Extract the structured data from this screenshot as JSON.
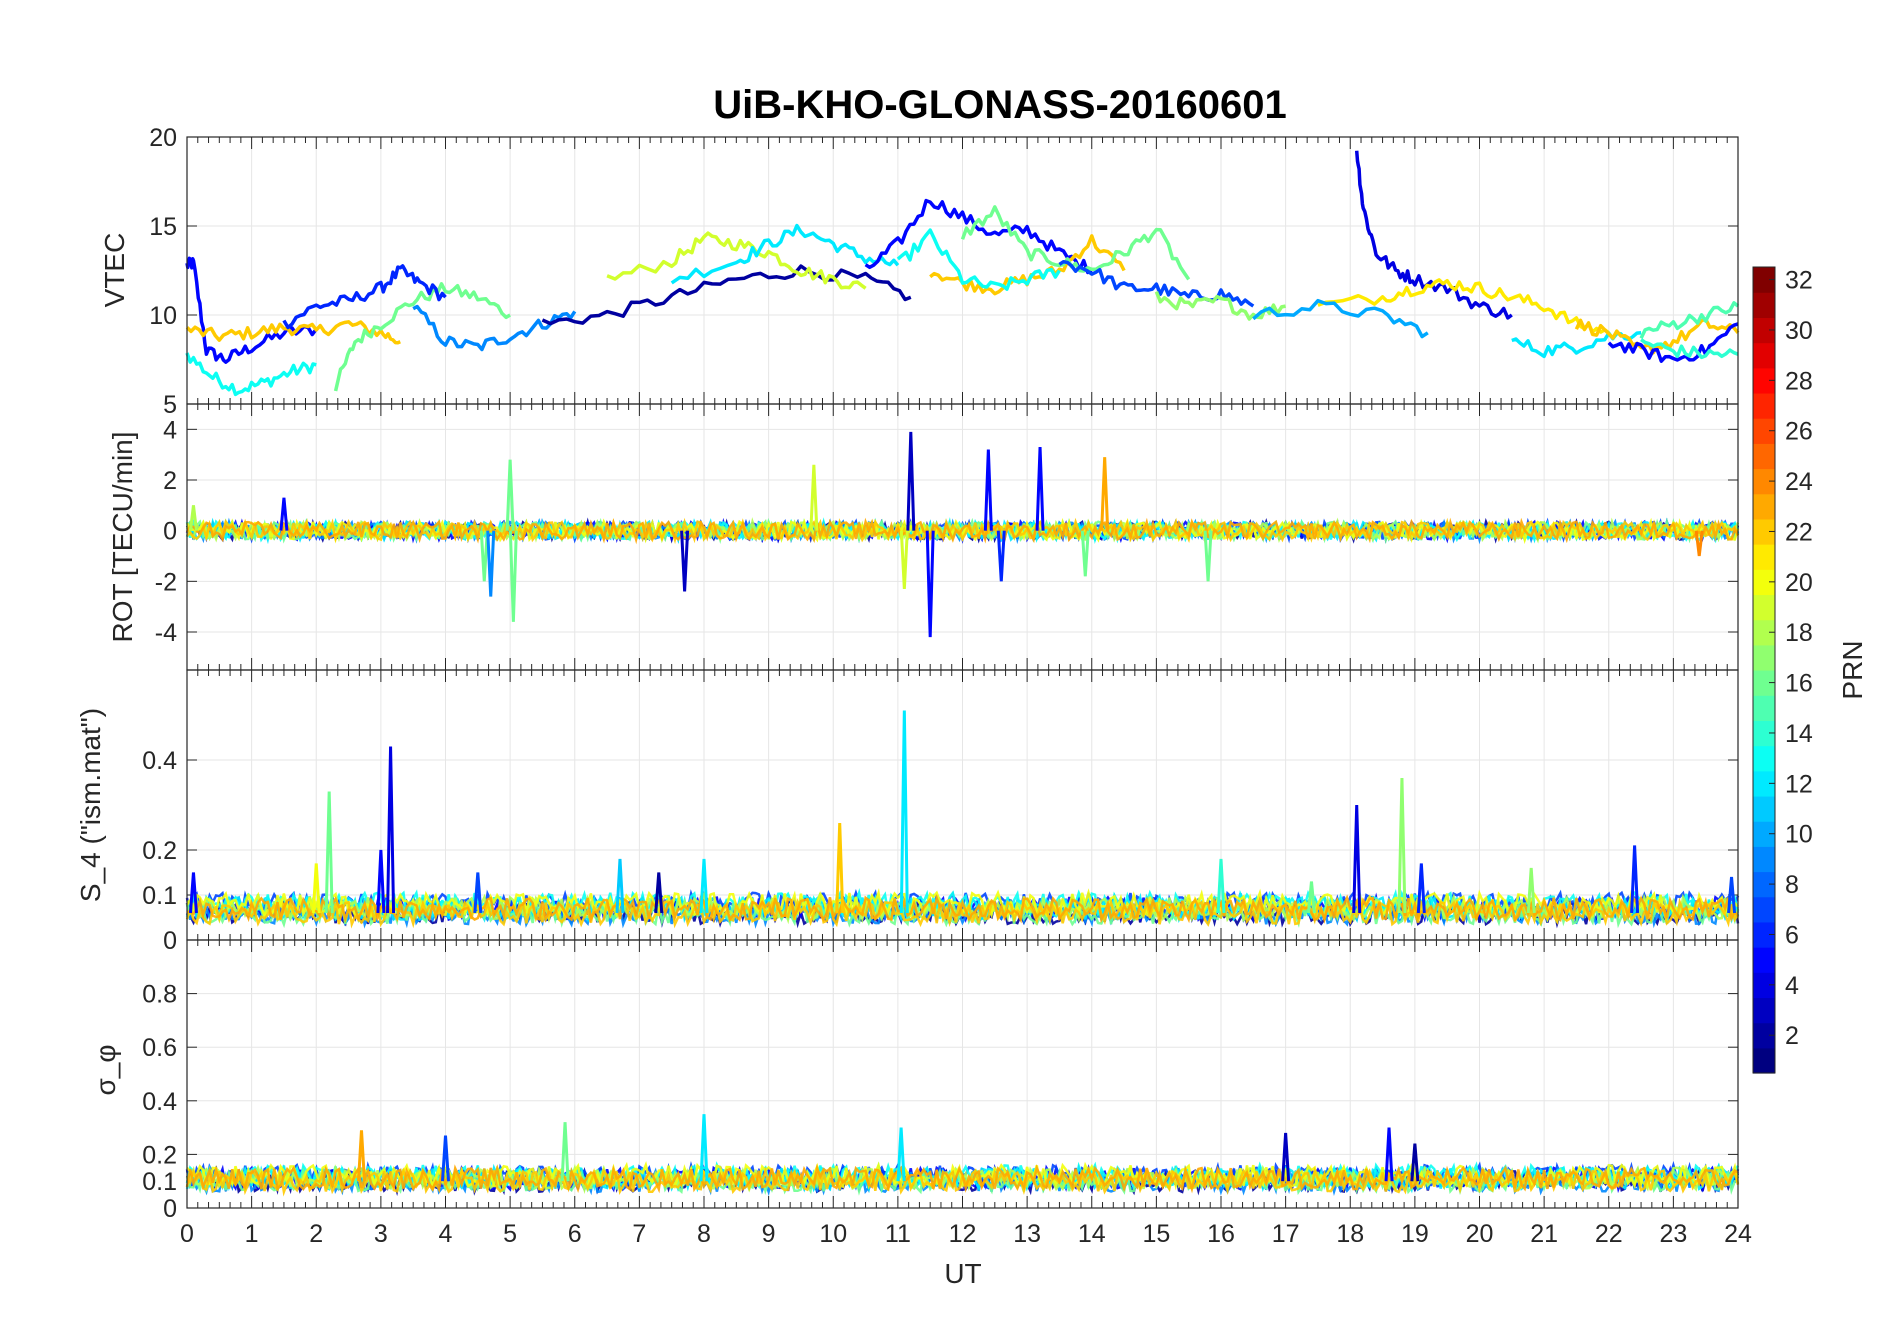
{
  "title": "UiB-KHO-GLONASS-20160601",
  "colorbar": {
    "label": "PRN",
    "range": [
      1,
      32
    ],
    "ticks": [
      2,
      4,
      6,
      8,
      10,
      12,
      14,
      16,
      18,
      20,
      22,
      24,
      26,
      28,
      30,
      32
    ],
    "colormap": "jet"
  },
  "chart_data": [
    {
      "type": "line",
      "name": "vtec",
      "ylabel": "VTEC",
      "xlim": [
        0,
        24
      ],
      "ylim": [
        5,
        20
      ],
      "yticks": [
        5,
        10,
        15,
        20
      ],
      "grid": true,
      "series": [
        {
          "prn": 5,
          "x": [
            0,
            0.1,
            0.3,
            0.6,
            1.0,
            1.5,
            2.0
          ],
          "values": [
            12.8,
            12.9,
            8.0,
            7.5,
            8.2,
            9.0,
            9.2
          ]
        },
        {
          "prn": 13,
          "x": [
            0,
            0.4,
            0.8,
            1.2,
            1.6,
            2.0
          ],
          "values": [
            7.8,
            6.5,
            5.8,
            6.2,
            6.8,
            7.2
          ]
        },
        {
          "prn": 22,
          "x": [
            0,
            0.5,
            1.0,
            1.5,
            2.0,
            2.5,
            3.0,
            3.3
          ],
          "values": [
            9.2,
            8.8,
            9.0,
            9.3,
            9.1,
            9.5,
            9.0,
            8.5
          ]
        },
        {
          "prn": 16,
          "x": [
            2.3,
            2.6,
            3.0,
            3.5,
            4.0,
            4.5,
            5.0
          ],
          "values": [
            6.0,
            8.5,
            9.5,
            10.8,
            11.5,
            11.0,
            10.0
          ]
        },
        {
          "prn": 6,
          "x": [
            1.5,
            2.0,
            2.5,
            3.0,
            3.3,
            3.6,
            4.0
          ],
          "values": [
            9.5,
            10.5,
            10.8,
            11.5,
            12.5,
            11.8,
            11.0
          ]
        },
        {
          "prn": 9,
          "x": [
            3.5,
            4.0,
            4.5,
            5.0,
            5.5,
            6.0
          ],
          "values": [
            10.5,
            8.5,
            8.2,
            8.8,
            9.5,
            10.2
          ]
        },
        {
          "prn": 2,
          "x": [
            5.5,
            6.5,
            7.5,
            8.5,
            9.5,
            10.5,
            11.2
          ],
          "values": [
            9.5,
            10.0,
            11.0,
            12.0,
            12.5,
            12.0,
            11.0
          ]
        },
        {
          "prn": 19,
          "x": [
            6.5,
            7.5,
            8.0,
            8.5,
            9.0,
            9.5,
            10.0,
            10.5
          ],
          "values": [
            12.0,
            13.0,
            14.3,
            14.0,
            13.5,
            12.5,
            12.0,
            11.5
          ]
        },
        {
          "prn": 12,
          "x": [
            7.5,
            8.5,
            9.0,
            9.5,
            10.0,
            10.5,
            11.0
          ],
          "values": [
            12.0,
            13.0,
            14.0,
            14.8,
            14.0,
            13.2,
            12.8
          ]
        },
        {
          "prn": 5,
          "x": [
            10.5,
            11.0,
            11.5,
            12.0,
            12.5,
            13.0,
            13.5,
            14.0
          ],
          "values": [
            12.5,
            14.0,
            16.5,
            15.5,
            14.5,
            14.8,
            13.5,
            12.5
          ]
        },
        {
          "prn": 22,
          "x": [
            11.5,
            12.0,
            12.5,
            13.0,
            13.5,
            14.0,
            14.5
          ],
          "values": [
            12.5,
            11.8,
            11.5,
            12.0,
            12.5,
            14.2,
            12.5
          ]
        },
        {
          "prn": 16,
          "x": [
            12.0,
            12.5,
            13.0,
            13.5,
            14.0,
            14.5,
            15.0,
            15.5
          ],
          "values": [
            14.5,
            15.8,
            13.5,
            13.0,
            12.5,
            13.5,
            14.8,
            12.0
          ]
        },
        {
          "prn": 13,
          "x": [
            11.0,
            11.5,
            12.0,
            12.5,
            13.0,
            13.5
          ],
          "values": [
            12.8,
            14.5,
            12.0,
            11.5,
            12.0,
            12.5
          ]
        },
        {
          "prn": 7,
          "x": [
            13.5,
            14.0,
            14.5,
            15.0,
            15.5,
            16.0,
            16.5
          ],
          "values": [
            13.0,
            12.5,
            11.5,
            11.5,
            11.0,
            11.2,
            10.5
          ]
        },
        {
          "prn": 17,
          "x": [
            15.0,
            15.5,
            16.0,
            16.5,
            17.0
          ],
          "values": [
            11.0,
            10.5,
            10.8,
            10.0,
            10.5
          ]
        },
        {
          "prn": 4,
          "x": [
            18.1,
            18.2,
            18.4,
            18.7,
            19.0,
            19.5,
            20.0,
            20.5
          ],
          "values": [
            19.3,
            16.0,
            13.5,
            12.5,
            12.0,
            11.5,
            10.5,
            10.0
          ]
        },
        {
          "prn": 21,
          "x": [
            17.5,
            18.5,
            19.0,
            19.5,
            20.0,
            20.5,
            21.0,
            21.5,
            22.0
          ],
          "values": [
            10.5,
            11.0,
            11.5,
            11.8,
            11.5,
            11.0,
            10.5,
            9.5,
            9.0
          ]
        },
        {
          "prn": 10,
          "x": [
            16.5,
            17.5,
            18.5,
            19.2
          ],
          "values": [
            10.0,
            10.5,
            10.0,
            9.0
          ]
        },
        {
          "prn": 12,
          "x": [
            20.5,
            21.0,
            21.5,
            22.0,
            22.5
          ],
          "values": [
            8.5,
            8.0,
            8.2,
            8.8,
            9.0
          ]
        },
        {
          "prn": 22,
          "x": [
            21.5,
            22.0,
            22.5,
            23.0,
            23.5,
            24.0
          ],
          "values": [
            9.5,
            9.0,
            8.0,
            8.5,
            9.5,
            9.0
          ]
        },
        {
          "prn": 5,
          "x": [
            22.0,
            22.5,
            23.0,
            23.5,
            24.0
          ],
          "values": [
            8.5,
            8.0,
            7.5,
            8.0,
            9.5
          ]
        },
        {
          "prn": 15,
          "x": [
            22.5,
            23.0,
            23.5,
            24.0
          ],
          "values": [
            9.0,
            9.5,
            10.0,
            10.5
          ]
        },
        {
          "prn": 14,
          "x": [
            22.5,
            23.0,
            23.5,
            24.0
          ],
          "values": [
            8.5,
            8.0,
            7.8,
            7.8
          ]
        }
      ]
    },
    {
      "type": "line",
      "name": "rot",
      "ylabel": "ROT [TECU/min]",
      "xlim": [
        0,
        24
      ],
      "ylim": [
        -5.5,
        5.0
      ],
      "yticks": [
        -4,
        -2,
        0,
        2,
        4
      ],
      "grid": true,
      "spikes": [
        {
          "x": 0.1,
          "y": 1.0,
          "prn": 18
        },
        {
          "x": 1.5,
          "y": 1.3,
          "prn": 5
        },
        {
          "x": 4.6,
          "y": -2.0,
          "prn": 16
        },
        {
          "x": 4.7,
          "y": -2.6,
          "prn": 9
        },
        {
          "x": 5.0,
          "y": 2.8,
          "prn": 16
        },
        {
          "x": 5.05,
          "y": -3.6,
          "prn": 16
        },
        {
          "x": 7.7,
          "y": -2.4,
          "prn": 3
        },
        {
          "x": 9.7,
          "y": 2.6,
          "prn": 19
        },
        {
          "x": 11.2,
          "y": 3.9,
          "prn": 3
        },
        {
          "x": 11.1,
          "y": -2.3,
          "prn": 19
        },
        {
          "x": 11.5,
          "y": -4.2,
          "prn": 5
        },
        {
          "x": 12.4,
          "y": 3.2,
          "prn": 5
        },
        {
          "x": 12.6,
          "y": -2.0,
          "prn": 6
        },
        {
          "x": 13.2,
          "y": 3.3,
          "prn": 5
        },
        {
          "x": 14.2,
          "y": 2.9,
          "prn": 23
        },
        {
          "x": 13.9,
          "y": -1.8,
          "prn": 16
        },
        {
          "x": 15.8,
          "y": -2.0,
          "prn": 16
        },
        {
          "x": 23.4,
          "y": -1.0,
          "prn": 24
        }
      ]
    },
    {
      "type": "line",
      "name": "s4",
      "ylabel": "S_4 (\"ism.mat\")",
      "xlim": [
        0,
        24
      ],
      "ylim": [
        0,
        0.6
      ],
      "yticks": [
        0,
        0.1,
        0.2,
        0.4
      ],
      "ytick_labels": [
        "0",
        "0.1",
        "0.2",
        "0.4"
      ],
      "grid": true,
      "spikes": [
        {
          "x": 2.2,
          "y": 0.33,
          "prn": 16
        },
        {
          "x": 3.15,
          "y": 0.43,
          "prn": 4
        },
        {
          "x": 3.0,
          "y": 0.2,
          "prn": 5
        },
        {
          "x": 10.1,
          "y": 0.26,
          "prn": 22
        },
        {
          "x": 11.1,
          "y": 0.51,
          "prn": 12
        },
        {
          "x": 18.1,
          "y": 0.3,
          "prn": 4
        },
        {
          "x": 18.8,
          "y": 0.36,
          "prn": 17
        },
        {
          "x": 22.4,
          "y": 0.21,
          "prn": 6
        },
        {
          "x": 8.0,
          "y": 0.18,
          "prn": 12
        },
        {
          "x": 0.1,
          "y": 0.15,
          "prn": 5
        },
        {
          "x": 2.0,
          "y": 0.17,
          "prn": 20
        },
        {
          "x": 4.5,
          "y": 0.15,
          "prn": 7
        },
        {
          "x": 6.7,
          "y": 0.18,
          "prn": 11
        },
        {
          "x": 7.3,
          "y": 0.15,
          "prn": 2
        },
        {
          "x": 16.0,
          "y": 0.18,
          "prn": 14
        },
        {
          "x": 17.4,
          "y": 0.13,
          "prn": 16
        },
        {
          "x": 19.1,
          "y": 0.17,
          "prn": 6
        },
        {
          "x": 20.8,
          "y": 0.16,
          "prn": 17
        },
        {
          "x": 23.9,
          "y": 0.14,
          "prn": 7
        }
      ]
    },
    {
      "type": "line",
      "name": "sigma_phi",
      "ylabel": "σ_φ",
      "xlabel": "UT",
      "xlim": [
        0,
        24
      ],
      "ylim": [
        0,
        1.0
      ],
      "yticks": [
        0,
        0.1,
        0.2,
        0.4,
        0.6,
        0.8
      ],
      "ytick_labels": [
        "0",
        "0.1",
        "0.2",
        "0.4",
        "0.6",
        "0.8"
      ],
      "xticks": [
        0,
        1,
        2,
        3,
        4,
        5,
        6,
        7,
        8,
        9,
        10,
        11,
        12,
        13,
        14,
        15,
        16,
        17,
        18,
        19,
        20,
        21,
        22,
        23,
        24
      ],
      "grid": true,
      "spikes": [
        {
          "x": 2.7,
          "y": 0.29,
          "prn": 23
        },
        {
          "x": 5.85,
          "y": 0.32,
          "prn": 16
        },
        {
          "x": 8.0,
          "y": 0.35,
          "prn": 12
        },
        {
          "x": 11.05,
          "y": 0.3,
          "prn": 12
        },
        {
          "x": 18.6,
          "y": 0.3,
          "prn": 5
        },
        {
          "x": 4.0,
          "y": 0.27,
          "prn": 7
        },
        {
          "x": 17.0,
          "y": 0.28,
          "prn": 3
        },
        {
          "x": 19.0,
          "y": 0.24,
          "prn": 2
        }
      ]
    }
  ]
}
